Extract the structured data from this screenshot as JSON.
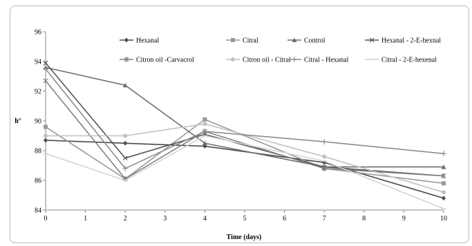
{
  "chart_data": {
    "type": "line",
    "x": [
      0,
      2,
      4,
      7,
      10
    ],
    "xlabel": "Time (days)",
    "ylabel": "h°",
    "xlim": [
      0,
      10
    ],
    "ylim": [
      84,
      96
    ],
    "xticks": [
      0,
      1,
      2,
      3,
      4,
      5,
      6,
      7,
      8,
      9,
      10
    ],
    "yticks": [
      84,
      86,
      88,
      90,
      92,
      94,
      96
    ],
    "grid": false,
    "legend_position": "top",
    "series": [
      {
        "name": "Hexanal",
        "values": [
          88.7,
          88.5,
          88.3,
          87.2,
          84.8
        ],
        "color": "#4a4a4a",
        "marker": "diamond"
      },
      {
        "name": "Citral",
        "values": [
          89.6,
          86.1,
          90.1,
          86.8,
          85.8
        ],
        "color": "#999999",
        "marker": "square"
      },
      {
        "name": "Control",
        "values": [
          93.6,
          92.4,
          88.5,
          86.9,
          86.9
        ],
        "color": "#6e6e6e",
        "marker": "triangle"
      },
      {
        "name": "Hexanal - 2-E-hexnal",
        "values": [
          93.9,
          87.5,
          89.1,
          86.9,
          86.3
        ],
        "color": "#555555",
        "marker": "x"
      },
      {
        "name": "Citron oil -Carvacrol",
        "values": [
          92.7,
          86.1,
          89.3,
          86.8,
          86.3
        ],
        "color": "#808080",
        "marker": "star"
      },
      {
        "name": "Citron oil - Citral",
        "values": [
          89.0,
          89.0,
          89.8,
          87.6,
          85.2
        ],
        "color": "#c0c0c0",
        "marker": "circle"
      },
      {
        "name": "Citral - Hexanal",
        "values": [
          93.5,
          86.8,
          89.3,
          88.6,
          87.8
        ],
        "color": "#8c8c8c",
        "marker": "plus"
      },
      {
        "name": "Citral - 2-E-hexenal",
        "values": [
          87.8,
          86.0,
          89.0,
          87.3,
          84.1
        ],
        "color": "#d4d4d4",
        "marker": "dash"
      }
    ]
  }
}
